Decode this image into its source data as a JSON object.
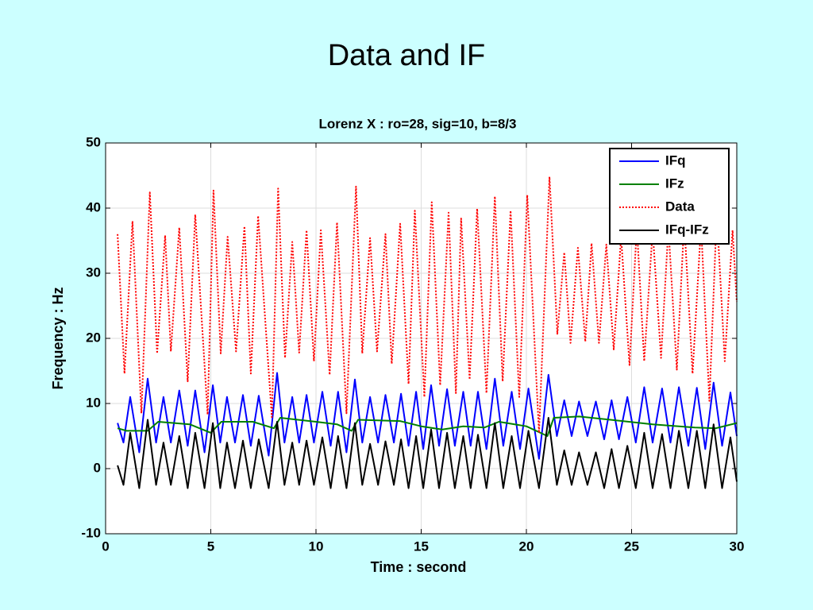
{
  "page_title": "Data and IF",
  "chart_data": {
    "type": "line",
    "title": "Lorenz X : ro=28, sig=10, b=8/3",
    "xlabel": "Time : second",
    "ylabel": "Frequency : Hz",
    "xlim": [
      0,
      30
    ],
    "xticks": [
      0,
      5,
      10,
      15,
      20,
      25,
      30
    ],
    "ylim": [
      -10,
      50
    ],
    "yticks": [
      -10,
      0,
      10,
      20,
      30,
      40,
      50
    ],
    "grid": true,
    "legend": "upper right",
    "series": [
      {
        "name": "IFq",
        "color": "#0000ff",
        "style": "solid",
        "x": [
          0.57,
          0.85,
          1.17,
          1.6,
          2.0,
          2.4,
          2.75,
          3.1,
          3.5,
          3.9,
          4.26,
          4.7,
          5.1,
          5.45,
          5.77,
          6.15,
          6.53,
          6.9,
          7.28,
          7.75,
          8.15,
          8.5,
          8.87,
          9.2,
          9.55,
          9.9,
          10.3,
          10.7,
          11.05,
          11.45,
          11.85,
          12.2,
          12.57,
          12.95,
          13.3,
          13.7,
          14.04,
          14.4,
          14.76,
          15.1,
          15.47,
          15.85,
          16.23,
          16.6,
          17,
          17.35,
          17.7,
          18.1,
          18.5,
          18.9,
          19.3,
          19.7,
          20.1,
          20.6,
          21.05,
          21.45,
          21.8,
          22.15,
          22.5,
          22.9,
          23.3,
          23.7,
          24.05,
          24.4,
          24.8,
          25.2,
          25.6,
          26,
          26.45,
          26.85,
          27.25,
          27.7,
          28.1,
          28.5,
          28.9,
          29.3,
          29.7,
          30
        ],
        "values": [
          7,
          4,
          11,
          2.5,
          13.8,
          4,
          11,
          4,
          12,
          3.5,
          12,
          2.5,
          12.8,
          4,
          11,
          4,
          11.3,
          3.5,
          11.2,
          2,
          14.7,
          4,
          11,
          4,
          11.3,
          4,
          11.8,
          3.5,
          11.8,
          2.5,
          13.7,
          4,
          11,
          4,
          11.3,
          4,
          11.5,
          3.5,
          11.8,
          3,
          12.8,
          3.5,
          12.2,
          3.5,
          11.8,
          3.5,
          11.8,
          3,
          13.8,
          3.5,
          11.8,
          3,
          12.3,
          1.5,
          14.4,
          5,
          10.5,
          5,
          10.3,
          5,
          10.3,
          4.5,
          10.5,
          4.5,
          11,
          4,
          12.5,
          4,
          12.3,
          4,
          12.5,
          3.5,
          12.4,
          3,
          13.2,
          3.5,
          11.7,
          5
        ]
      },
      {
        "name": "IFz",
        "color": "#008000",
        "style": "solid",
        "x": [
          0.57,
          1,
          2,
          2.5,
          4,
          5,
          5.5,
          7,
          8,
          8.3,
          10,
          11,
          11.7,
          12,
          14,
          15,
          16,
          17,
          18,
          18.7,
          20,
          21,
          21.3,
          22.5,
          24,
          26,
          28,
          29,
          30
        ],
        "values": [
          6.2,
          5.8,
          5.8,
          7.2,
          6.8,
          5.5,
          7.2,
          7.2,
          6.2,
          7.8,
          7.2,
          6.8,
          5.8,
          7.5,
          7.3,
          6.5,
          6,
          6.5,
          6.3,
          7.2,
          6.5,
          5,
          7.8,
          8,
          7.5,
          6.8,
          6.3,
          6.2,
          7
        ]
      },
      {
        "name": "Data",
        "color": "#ff0000",
        "style": "dotted",
        "x": [
          0.57,
          0.9,
          1.28,
          1.7,
          2.1,
          2.45,
          2.83,
          3.1,
          3.5,
          3.9,
          4.26,
          4.85,
          5.13,
          5.47,
          5.8,
          6.2,
          6.6,
          6.9,
          7.25,
          7.9,
          8.2,
          8.53,
          8.87,
          9.2,
          9.55,
          9.9,
          10.23,
          10.65,
          11.0,
          11.45,
          11.9,
          12.2,
          12.57,
          12.9,
          13.3,
          13.6,
          14.0,
          14.4,
          14.7,
          15.15,
          15.5,
          15.9,
          16.3,
          16.65,
          16.9,
          17.3,
          17.66,
          18.1,
          18.5,
          18.87,
          19.25,
          19.66,
          20.04,
          20.6,
          21.1,
          21.47,
          21.8,
          22.1,
          22.45,
          22.8,
          23.1,
          23.45,
          23.8,
          24.15,
          24.5,
          24.9,
          25.25,
          25.6,
          26.0,
          26.4,
          26.75,
          27.15,
          27.5,
          27.9,
          28.3,
          28.7,
          29.05,
          29.43,
          29.8,
          30
        ],
        "values": [
          36,
          14.6,
          38,
          8.5,
          42.4,
          17.7,
          35.8,
          18,
          37,
          13.4,
          39,
          8.3,
          42.7,
          17.7,
          35.6,
          18,
          37.2,
          14.6,
          38.8,
          7.9,
          43,
          17,
          34.8,
          17.8,
          36.6,
          16.5,
          36.6,
          14.4,
          37.8,
          8.5,
          43.3,
          17.7,
          35.4,
          18,
          36,
          16.1,
          37.6,
          13,
          39.6,
          11,
          40.9,
          12.8,
          39.3,
          11.6,
          38.4,
          13.7,
          39.9,
          11.6,
          41.8,
          13.4,
          39.6,
          11,
          42,
          5.5,
          44.8,
          20.7,
          33.2,
          19.3,
          33.9,
          19.5,
          34.6,
          19.3,
          34.4,
          18.3,
          35.6,
          15.9,
          37.2,
          16.5,
          36.6,
          17,
          37,
          15.2,
          38,
          14.6,
          37.4,
          10.4,
          39.3,
          16.5,
          36.6,
          25.6
        ]
      },
      {
        "name": "IFq-IFz",
        "color": "#000000",
        "style": "solid",
        "x": [
          0.57,
          0.85,
          1.17,
          1.6,
          2.0,
          2.4,
          2.75,
          3.1,
          3.5,
          3.9,
          4.26,
          4.7,
          5.1,
          5.45,
          5.77,
          6.15,
          6.53,
          6.9,
          7.28,
          7.75,
          8.15,
          8.5,
          8.87,
          9.2,
          9.55,
          9.9,
          10.3,
          10.7,
          11.05,
          11.45,
          11.85,
          12.2,
          12.57,
          12.95,
          13.3,
          13.7,
          14.04,
          14.4,
          14.76,
          15.1,
          15.47,
          15.85,
          16.23,
          16.6,
          17,
          17.35,
          17.7,
          18.1,
          18.5,
          18.9,
          19.3,
          19.7,
          20.1,
          20.6,
          21.05,
          21.45,
          21.8,
          22.15,
          22.5,
          22.9,
          23.3,
          23.7,
          24.05,
          24.4,
          24.8,
          25.2,
          25.6,
          26,
          26.45,
          26.85,
          27.25,
          27.7,
          28.1,
          28.5,
          28.9,
          29.3,
          29.7,
          30
        ],
        "values": [
          0.5,
          -2.5,
          5.5,
          -3,
          7.5,
          -2.5,
          4,
          -2.5,
          5,
          -3,
          5.5,
          -3,
          7,
          -3,
          4,
          -3,
          4.3,
          -3,
          4.5,
          -3,
          7.2,
          -2.5,
          4,
          -2.5,
          4.3,
          -2.5,
          4.8,
          -3,
          5,
          -3,
          7,
          -2.5,
          3.8,
          -2.5,
          4.2,
          -2.5,
          4.5,
          -3,
          5,
          -3,
          6,
          -3,
          5.5,
          -3,
          5,
          -3,
          5.2,
          -3,
          7,
          -3,
          5,
          -3,
          5.8,
          -3,
          7.8,
          -2.5,
          2.8,
          -2.5,
          2.5,
          -2.5,
          2.5,
          -3,
          3,
          -3,
          3.5,
          -3,
          5.5,
          -3,
          5.3,
          -3,
          5.8,
          -3,
          5.8,
          -3,
          6.8,
          -3,
          4.8,
          -2
        ]
      }
    ]
  }
}
